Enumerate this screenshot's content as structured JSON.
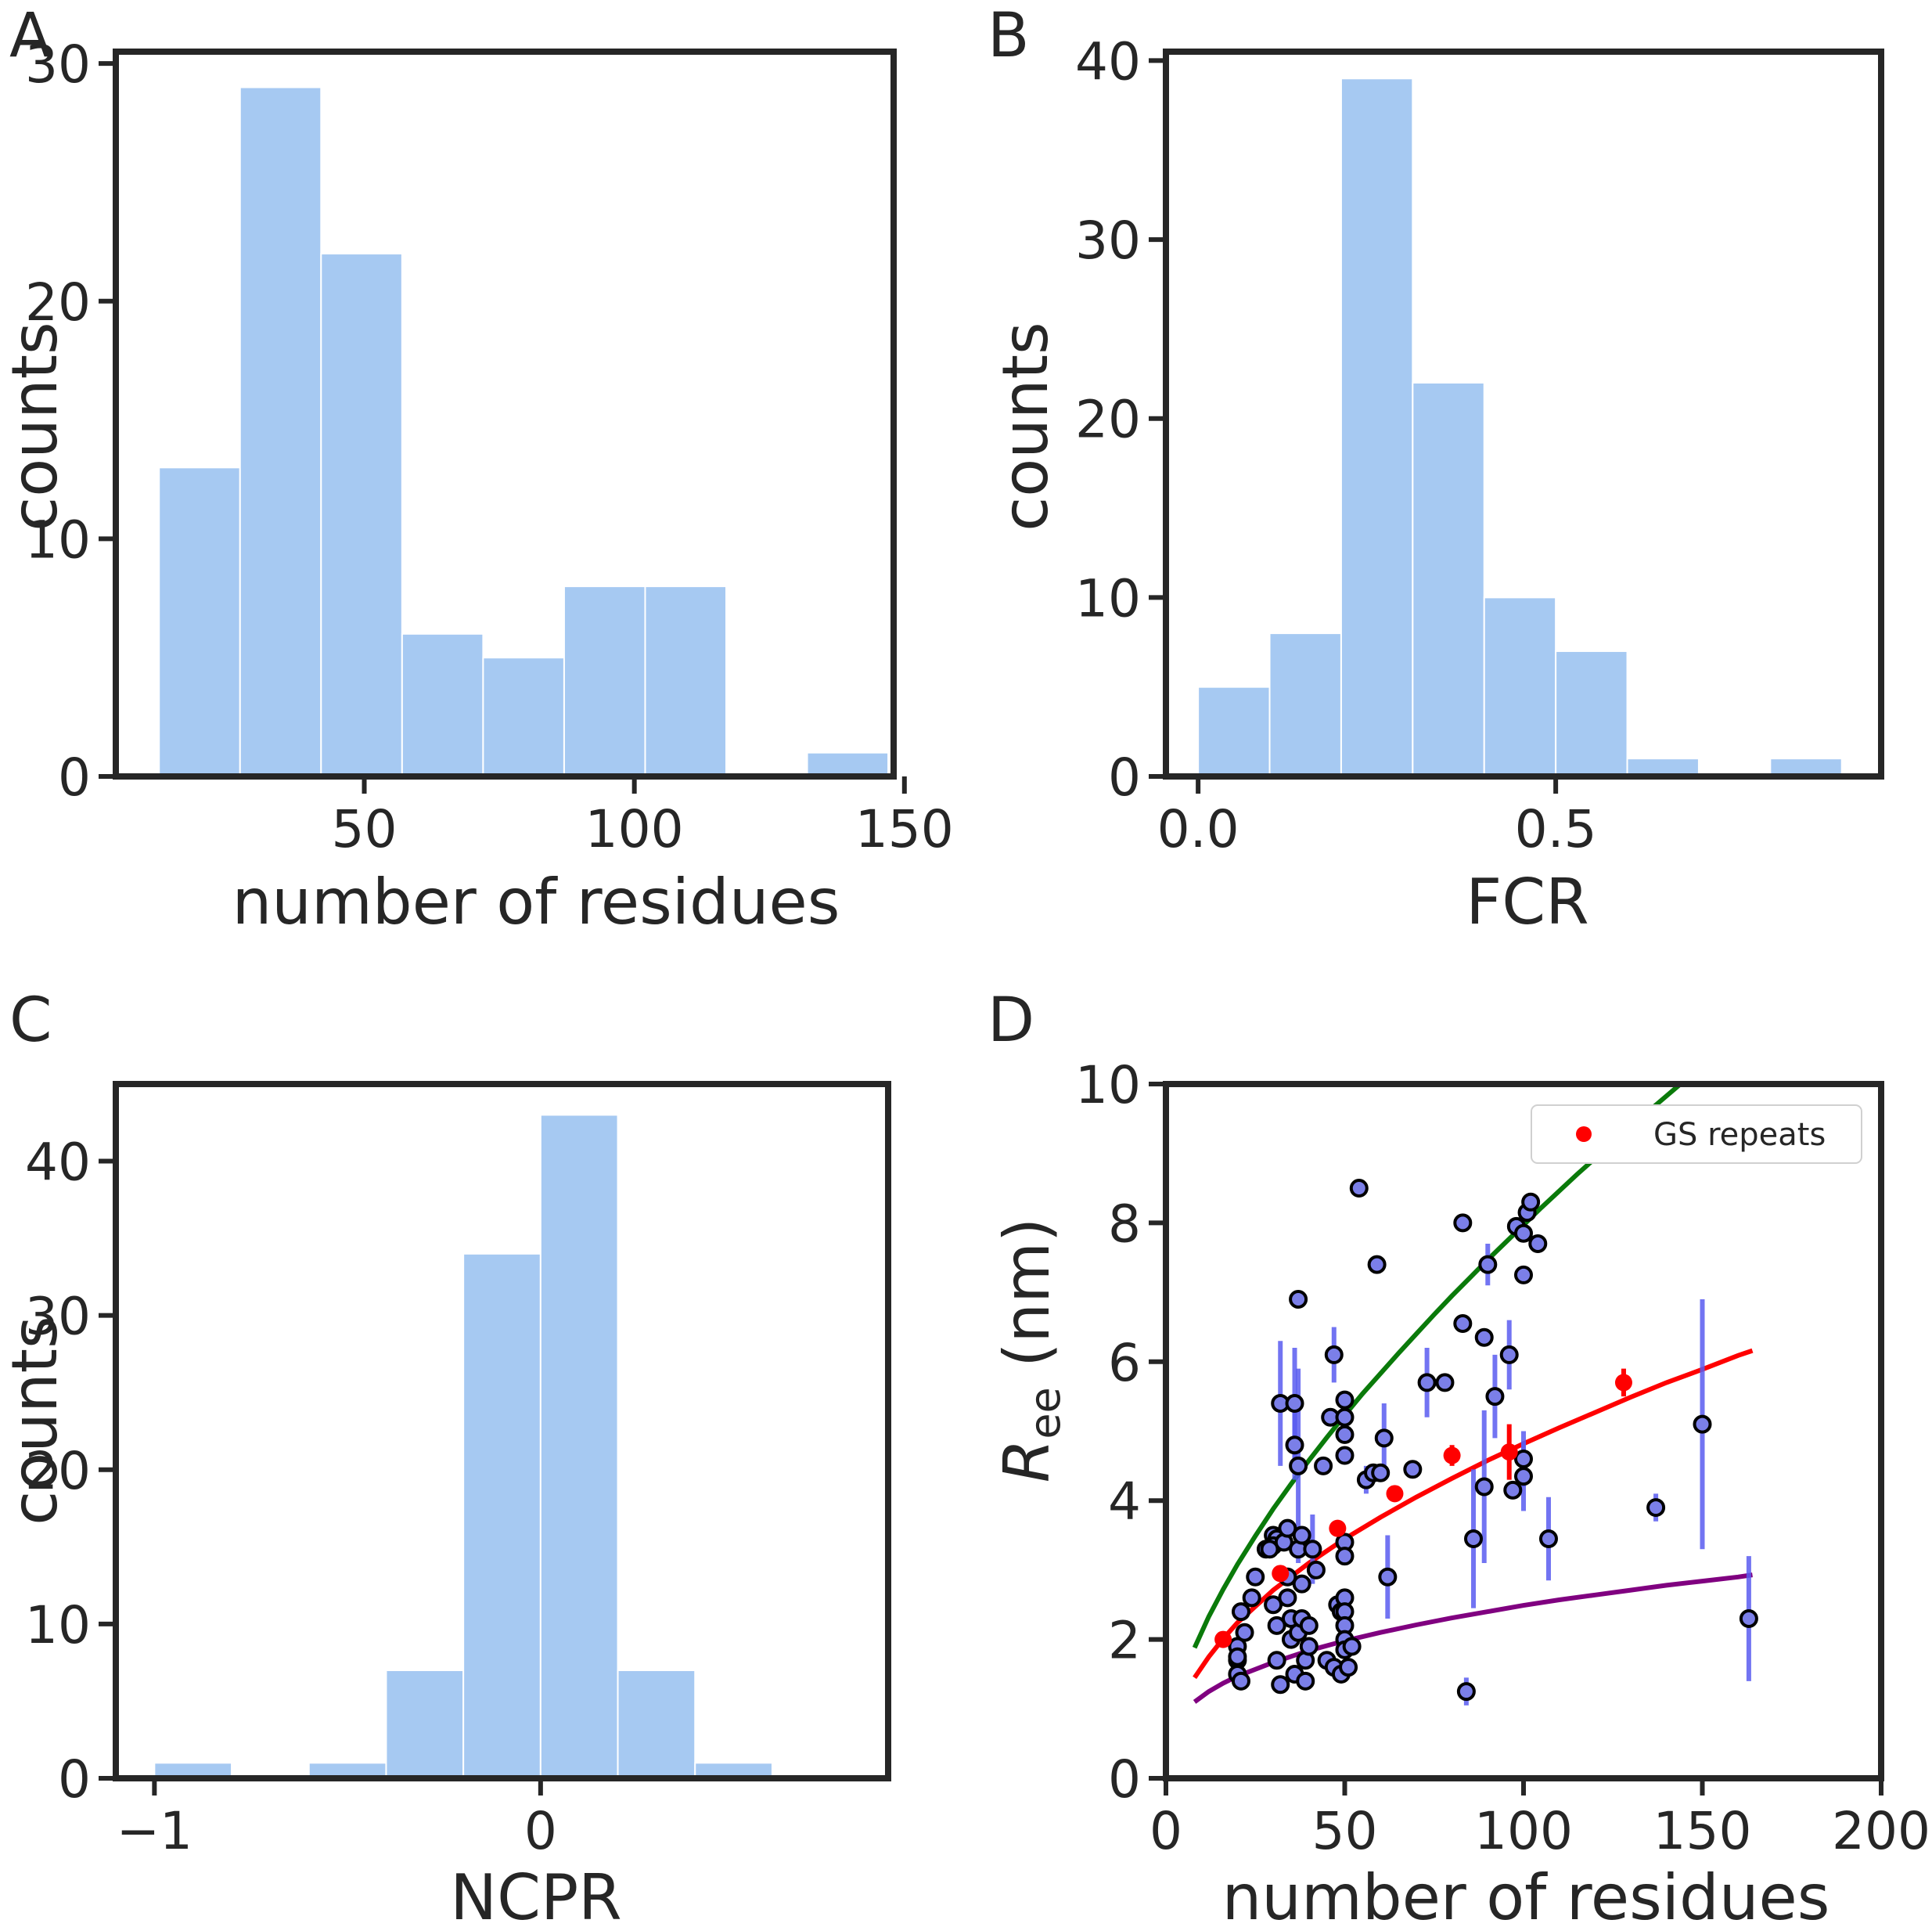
{
  "panels": {
    "a": {
      "letter": "A",
      "xlabel": "number of residues",
      "ylabel": "counts"
    },
    "b": {
      "letter": "B",
      "xlabel": "FCR",
      "ylabel": "counts"
    },
    "c": {
      "letter": "C",
      "xlabel": "NCPR",
      "ylabel": "counts"
    },
    "d": {
      "letter": "D",
      "xlabel": "number of residues",
      "ylabel_main": "R",
      "ylabel_sub": "ee",
      "ylabel_unit": " (nm)",
      "legend_label": "GS repeats"
    }
  },
  "colors": {
    "bar": "#a6c9f2",
    "axis": "#262626",
    "points_face": "#7b7fe8",
    "points_edge": "#000000",
    "errorbar": "#5a5cf0",
    "gs_repeats": "#ff0000",
    "upper_curve": "#0a7a0a",
    "lower_curve": "#800080"
  },
  "chart_data": [
    {
      "type": "bar",
      "panel": "A",
      "xlabel": "number of residues",
      "ylabel": "counts",
      "xlim": [
        4,
        148
      ],
      "ylim": [
        0,
        30.5
      ],
      "xticks": [
        50,
        100,
        150
      ],
      "yticks": [
        0,
        10,
        20,
        30
      ],
      "bins": [
        [
          12,
          27
        ],
        [
          27,
          42
        ],
        [
          42,
          57
        ],
        [
          57,
          72
        ],
        [
          72,
          87
        ],
        [
          87,
          102
        ],
        [
          102,
          117
        ],
        [
          117,
          132
        ],
        [
          132,
          147
        ]
      ],
      "values": [
        13,
        29,
        22,
        6,
        5,
        8,
        8,
        0,
        1
      ]
    },
    {
      "type": "bar",
      "panel": "B",
      "xlabel": "FCR",
      "ylabel": "counts",
      "xlim": [
        -0.045,
        0.955
      ],
      "ylim": [
        0,
        40.5
      ],
      "xticks": [
        0.0,
        0.5
      ],
      "xtick_labels": [
        "0.0",
        "0.5"
      ],
      "yticks": [
        0,
        10,
        20,
        30,
        40
      ],
      "bins": [
        [
          0.0,
          0.1
        ],
        [
          0.1,
          0.2
        ],
        [
          0.2,
          0.3
        ],
        [
          0.3,
          0.4
        ],
        [
          0.4,
          0.5
        ],
        [
          0.5,
          0.6
        ],
        [
          0.6,
          0.7
        ],
        [
          0.7,
          0.8
        ],
        [
          0.8,
          0.9
        ]
      ],
      "values": [
        5,
        8,
        39,
        22,
        10,
        7,
        1,
        0,
        1
      ]
    },
    {
      "type": "bar",
      "panel": "C",
      "xlabel": "NCPR",
      "ylabel": "counts",
      "xlim": [
        -1.1,
        0.9
      ],
      "ylim": [
        0,
        45
      ],
      "xticks": [
        -1,
        0
      ],
      "xtick_labels": [
        "−1",
        "0"
      ],
      "yticks": [
        0,
        10,
        20,
        30,
        40
      ],
      "bins": [
        [
          -1.0,
          -0.8
        ],
        [
          -0.8,
          -0.6
        ],
        [
          -0.6,
          -0.4
        ],
        [
          -0.4,
          -0.2
        ],
        [
          -0.2,
          0.0
        ],
        [
          0.0,
          0.2
        ],
        [
          0.2,
          0.4
        ],
        [
          0.4,
          0.6
        ]
      ],
      "values": [
        1,
        0,
        1,
        7,
        34,
        43,
        7,
        1
      ]
    },
    {
      "type": "scatter",
      "panel": "D",
      "xlabel": "number of residues",
      "ylabel": "Ree (nm)",
      "xlim": [
        0,
        200
      ],
      "ylim": [
        0,
        10
      ],
      "xticks": [
        0,
        50,
        100,
        150,
        200
      ],
      "yticks": [
        0,
        2,
        4,
        6,
        8,
        10
      ],
      "points": [
        {
          "x": 20,
          "y": 1.9
        },
        {
          "x": 20,
          "y": 1.7
        },
        {
          "x": 20,
          "y": 1.5
        },
        {
          "x": 21,
          "y": 1.4
        },
        {
          "x": 20,
          "y": 1.75
        },
        {
          "x": 22,
          "y": 2.1
        },
        {
          "x": 21,
          "y": 2.4
        },
        {
          "x": 24,
          "y": 2.6
        },
        {
          "x": 25,
          "y": 2.9
        },
        {
          "x": 28,
          "y": 3.3
        },
        {
          "x": 30,
          "y": 3.5
        },
        {
          "x": 31,
          "y": 3.45
        },
        {
          "x": 30,
          "y": 3.35
        },
        {
          "x": 29,
          "y": 3.3
        },
        {
          "x": 30,
          "y": 2.5
        },
        {
          "x": 31,
          "y": 1.7
        },
        {
          "x": 31,
          "y": 2.2
        },
        {
          "x": 32,
          "y": 5.4,
          "err": 0.9
        },
        {
          "x": 32,
          "y": 1.35
        },
        {
          "x": 33,
          "y": 3.4
        },
        {
          "x": 34,
          "y": 3.6
        },
        {
          "x": 34,
          "y": 2.9
        },
        {
          "x": 34,
          "y": 2.6
        },
        {
          "x": 35,
          "y": 2.3
        },
        {
          "x": 35,
          "y": 2.0
        },
        {
          "x": 36,
          "y": 5.4,
          "err": 0.8
        },
        {
          "x": 36,
          "y": 4.8,
          "err": 0.5
        },
        {
          "x": 36,
          "y": 1.5
        },
        {
          "x": 37,
          "y": 6.9
        },
        {
          "x": 37,
          "y": 4.5,
          "err": 1.4
        },
        {
          "x": 37,
          "y": 3.3
        },
        {
          "x": 37,
          "y": 2.1
        },
        {
          "x": 38,
          "y": 3.5
        },
        {
          "x": 38,
          "y": 2.8
        },
        {
          "x": 38,
          "y": 2.3
        },
        {
          "x": 39,
          "y": 1.7
        },
        {
          "x": 39,
          "y": 1.4
        },
        {
          "x": 40,
          "y": 2.2
        },
        {
          "x": 40,
          "y": 1.9
        },
        {
          "x": 41,
          "y": 3.3,
          "err": 0.5
        },
        {
          "x": 42,
          "y": 3.0
        },
        {
          "x": 44,
          "y": 4.5
        },
        {
          "x": 45,
          "y": 1.7
        },
        {
          "x": 47,
          "y": 6.1,
          "err": 0.4
        },
        {
          "x": 46,
          "y": 5.2
        },
        {
          "x": 47,
          "y": 1.6
        },
        {
          "x": 48,
          "y": 2.5
        },
        {
          "x": 49,
          "y": 2.4
        },
        {
          "x": 49,
          "y": 1.5
        },
        {
          "x": 50,
          "y": 5.45
        },
        {
          "x": 50,
          "y": 5.2
        },
        {
          "x": 50,
          "y": 4.95
        },
        {
          "x": 50,
          "y": 4.65
        },
        {
          "x": 50,
          "y": 3.4
        },
        {
          "x": 50,
          "y": 3.2
        },
        {
          "x": 50,
          "y": 2.6
        },
        {
          "x": 50,
          "y": 2.4
        },
        {
          "x": 50,
          "y": 2.2
        },
        {
          "x": 50,
          "y": 2.0
        },
        {
          "x": 50,
          "y": 1.85
        },
        {
          "x": 51,
          "y": 1.6
        },
        {
          "x": 52,
          "y": 1.9
        },
        {
          "x": 54,
          "y": 8.5
        },
        {
          "x": 56,
          "y": 4.3,
          "err": 0.2
        },
        {
          "x": 58,
          "y": 4.4
        },
        {
          "x": 59,
          "y": 7.4
        },
        {
          "x": 60,
          "y": 4.4
        },
        {
          "x": 61,
          "y": 4.9,
          "err": 0.5
        },
        {
          "x": 62,
          "y": 2.9,
          "err": 0.6
        },
        {
          "x": 69,
          "y": 4.45
        },
        {
          "x": 73,
          "y": 5.7,
          "err": 0.5
        },
        {
          "x": 78,
          "y": 5.7
        },
        {
          "x": 83,
          "y": 8.0
        },
        {
          "x": 83,
          "y": 6.55
        },
        {
          "x": 84,
          "y": 1.25,
          "err": 0.2
        },
        {
          "x": 86,
          "y": 3.45,
          "err": 1.0
        },
        {
          "x": 89,
          "y": 6.35
        },
        {
          "x": 89,
          "y": 4.2,
          "err": 1.1
        },
        {
          "x": 90,
          "y": 7.4,
          "err": 0.3
        },
        {
          "x": 92,
          "y": 5.5,
          "err": 0.6
        },
        {
          "x": 96,
          "y": 6.1,
          "err": 0.5
        },
        {
          "x": 97,
          "y": 4.15
        },
        {
          "x": 98,
          "y": 7.95
        },
        {
          "x": 100,
          "y": 7.85
        },
        {
          "x": 100,
          "y": 7.25
        },
        {
          "x": 100,
          "y": 4.6,
          "err": 0.4
        },
        {
          "x": 100,
          "y": 4.35,
          "err": 0.5
        },
        {
          "x": 101,
          "y": 8.15
        },
        {
          "x": 102,
          "y": 8.3
        },
        {
          "x": 104,
          "y": 7.7
        },
        {
          "x": 107,
          "y": 3.45,
          "err": 0.6
        },
        {
          "x": 137,
          "y": 3.9,
          "err": 0.2
        },
        {
          "x": 150,
          "y": 5.1,
          "err": 1.8
        },
        {
          "x": 163,
          "y": 2.3,
          "err": 0.9
        }
      ],
      "gs_repeats": {
        "name": "GS repeats",
        "points": [
          {
            "x": 16,
            "y": 2.0,
            "err": 0.05
          },
          {
            "x": 32,
            "y": 2.95,
            "err": 0.1
          },
          {
            "x": 48,
            "y": 3.6,
            "err": 0.1
          },
          {
            "x": 64,
            "y": 4.1,
            "err": 0.05
          },
          {
            "x": 80,
            "y": 4.65,
            "err": 0.15
          },
          {
            "x": 96,
            "y": 4.7,
            "err": 0.4
          },
          {
            "x": 128,
            "y": 5.7,
            "err": 0.2
          }
        ]
      },
      "curves": [
        {
          "color": "upper",
          "points": [
            [
              8,
              1.88
            ],
            [
              12,
              2.33
            ],
            [
              16,
              2.72
            ],
            [
              20,
              3.08
            ],
            [
              25,
              3.49
            ],
            [
              30,
              3.88
            ],
            [
              35,
              4.24
            ],
            [
              40,
              4.58
            ],
            [
              45,
              4.91
            ],
            [
              50,
              5.23
            ],
            [
              55,
              5.54
            ],
            [
              60,
              5.83
            ],
            [
              65,
              6.12
            ],
            [
              70,
              6.4
            ],
            [
              75,
              6.68
            ],
            [
              80,
              6.95
            ],
            [
              85,
              7.21
            ],
            [
              90,
              7.47
            ],
            [
              95,
              7.72
            ],
            [
              100,
              7.97
            ],
            [
              105,
              8.22
            ],
            [
              110,
              8.46
            ],
            [
              115,
              8.7
            ],
            [
              120,
              8.93
            ],
            [
              125,
              9.16
            ],
            [
              130,
              9.39
            ],
            [
              135,
              9.61
            ],
            [
              140,
              9.83
            ],
            [
              145,
              10.05
            ]
          ]
        },
        {
          "color": "gs",
          "points": [
            [
              8,
              1.45
            ],
            [
              12,
              1.75
            ],
            [
              16,
              2.01
            ],
            [
              20,
              2.24
            ],
            [
              30,
              2.71
            ],
            [
              40,
              3.1
            ],
            [
              50,
              3.45
            ],
            [
              60,
              3.76
            ],
            [
              70,
              4.05
            ],
            [
              80,
              4.32
            ],
            [
              90,
              4.58
            ],
            [
              100,
              4.82
            ],
            [
              110,
              5.05
            ],
            [
              120,
              5.27
            ],
            [
              130,
              5.49
            ],
            [
              140,
              5.7
            ],
            [
              150,
              5.89
            ],
            [
              160,
              6.09
            ],
            [
              164,
              6.16
            ]
          ]
        },
        {
          "color": "lower",
          "points": [
            [
              8,
              1.1
            ],
            [
              12,
              1.25
            ],
            [
              16,
              1.37
            ],
            [
              20,
              1.47
            ],
            [
              30,
              1.67
            ],
            [
              40,
              1.84
            ],
            [
              50,
              1.98
            ],
            [
              60,
              2.1
            ],
            [
              70,
              2.21
            ],
            [
              80,
              2.31
            ],
            [
              90,
              2.4
            ],
            [
              100,
              2.49
            ],
            [
              110,
              2.57
            ],
            [
              120,
              2.64
            ],
            [
              130,
              2.71
            ],
            [
              140,
              2.78
            ],
            [
              150,
              2.84
            ],
            [
              160,
              2.9
            ],
            [
              164,
              2.93
            ]
          ]
        }
      ],
      "legend": {
        "loc": "upper right",
        "entries": [
          "GS repeats"
        ]
      }
    }
  ]
}
